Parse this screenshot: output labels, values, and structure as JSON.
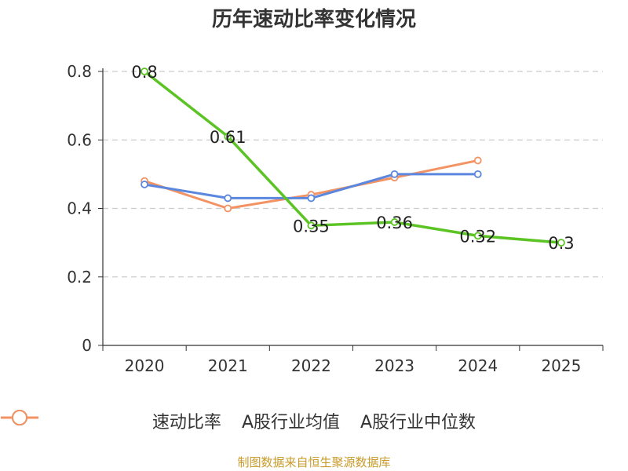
{
  "chart_data": {
    "type": "line",
    "title": "历年速动比率变化情况",
    "categories": [
      "2020",
      "2021",
      "2022",
      "2023",
      "2024",
      "2025"
    ],
    "ylim": [
      0,
      0.8
    ],
    "y_ticks": [
      "0",
      "0.2",
      "0.4",
      "0.6",
      "0.8"
    ],
    "y_tick_values": [
      0,
      0.2,
      0.4,
      0.6,
      0.8
    ],
    "grid": true,
    "legend_position": "bottom",
    "series": [
      {
        "name": "速动比率",
        "color": "#5bc424",
        "values": [
          0.8,
          0.61,
          0.35,
          0.36,
          0.32,
          0.3
        ],
        "labels": [
          "0.8",
          "0.61",
          "0.35",
          "0.36",
          "0.32",
          "0.3"
        ]
      },
      {
        "name": "A股行业均值",
        "color": "#5b87de",
        "values": [
          0.47,
          0.43,
          0.43,
          0.5,
          0.5,
          null
        ]
      },
      {
        "name": "A股行业中位数",
        "color": "#f39363",
        "values": [
          0.48,
          0.4,
          0.44,
          0.49,
          0.54,
          null
        ]
      }
    ]
  },
  "footer": {
    "source": "制图数据来自恒生聚源数据库",
    "source_color": "#c89b2a"
  }
}
